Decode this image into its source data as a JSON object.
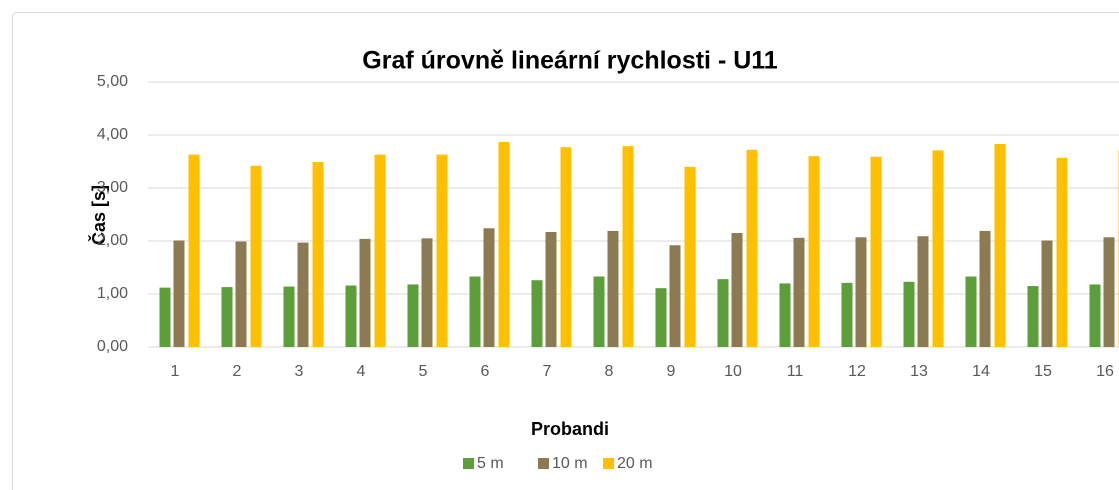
{
  "chart_data": {
    "type": "bar",
    "title": "Graf úrovně lineární rychlosti - U11",
    "x_label": "Probandi",
    "y_label": "Čas [s]",
    "categories": [
      "1",
      "2",
      "3",
      "4",
      "5",
      "6",
      "7",
      "8",
      "9",
      "10",
      "11",
      "12",
      "13",
      "14",
      "15",
      "16"
    ],
    "series": [
      {
        "name": "5 m",
        "color": "#5b9e3a",
        "values": [
          1.12,
          1.13,
          1.14,
          1.16,
          1.18,
          1.33,
          1.26,
          1.33,
          1.11,
          1.28,
          1.2,
          1.21,
          1.23,
          1.33,
          1.15,
          1.18
        ]
      },
      {
        "name": "10 m",
        "color": "#8c7a52",
        "values": [
          2.01,
          1.99,
          1.97,
          2.04,
          2.05,
          2.24,
          2.17,
          2.19,
          1.92,
          2.15,
          2.06,
          2.07,
          2.09,
          2.19,
          2.01,
          2.07
        ]
      },
      {
        "name": "20 m",
        "color": "#ffc000",
        "values": [
          3.63,
          3.42,
          3.49,
          3.63,
          3.63,
          3.87,
          3.77,
          3.79,
          3.4,
          3.72,
          3.6,
          3.59,
          3.71,
          3.83,
          3.57,
          3.72
        ]
      }
    ],
    "ylim": [
      0,
      5
    ],
    "yticks": [
      {
        "value": 0,
        "label": "0,00"
      },
      {
        "value": 1,
        "label": "1,00"
      },
      {
        "value": 2,
        "label": "2,00"
      },
      {
        "value": 3,
        "label": "3,00"
      },
      {
        "value": 4,
        "label": "4,00"
      },
      {
        "value": 5,
        "label": "5,00"
      }
    ],
    "grid": true,
    "legend": "bottom"
  }
}
